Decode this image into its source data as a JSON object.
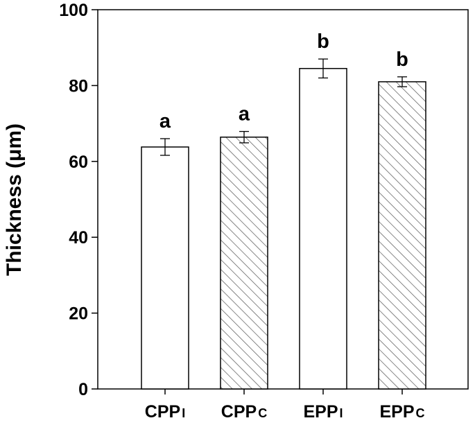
{
  "chart_data": {
    "type": "bar",
    "title": "",
    "xlabel": "",
    "ylabel": "Thickness (μm)",
    "ylim": [
      0,
      100
    ],
    "yticks": [
      0,
      20,
      40,
      60,
      80,
      100
    ],
    "ytick_labels": [
      "0",
      "20",
      "40",
      "60",
      "80",
      "100"
    ],
    "grid": false,
    "categories": [
      {
        "main": "CPP",
        "sub": "I"
      },
      {
        "main": "CPP",
        "sub": "C"
      },
      {
        "main": "EPP",
        "sub": "I"
      },
      {
        "main": "EPP",
        "sub": "C"
      }
    ],
    "values": [
      63.8,
      66.4,
      84.5,
      81.0
    ],
    "errors": [
      2.2,
      1.5,
      2.5,
      1.3
    ],
    "significance_labels": [
      "a",
      "a",
      "b",
      "b"
    ],
    "fill_patterns": [
      "none",
      "diagonal-hatch",
      "none",
      "diagonal-hatch"
    ],
    "colors": {
      "bar_edge": "#000000",
      "bar_fill": "#ffffff",
      "hatch": "#555555"
    }
  }
}
